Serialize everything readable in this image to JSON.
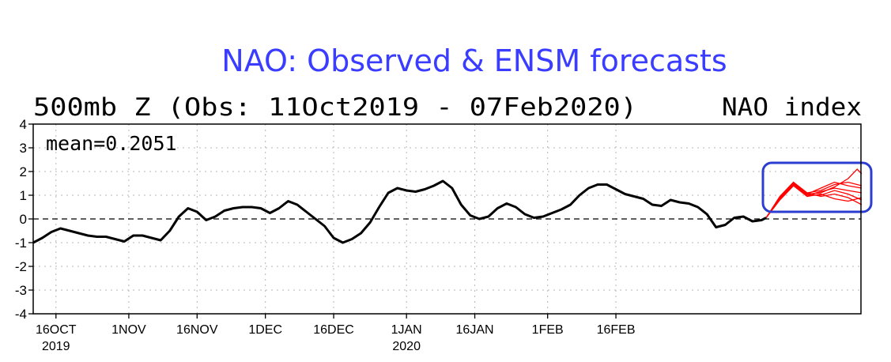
{
  "chart_data": {
    "type": "line",
    "title": "NAO: Observed & ENSM forecasts",
    "subtitle_left": "500mb Z (Obs: 11Oct2019 - 07Feb2020)",
    "subtitle_right": "NAO index",
    "annotation": "mean=0.2051",
    "ylim": [
      -4,
      4
    ],
    "yticks": [
      "4",
      "3",
      "2",
      "1",
      "0",
      "-1",
      "-2",
      "-3",
      "-4"
    ],
    "ytick_values": [
      4,
      3,
      2,
      1,
      0,
      -1,
      -2,
      -3,
      -4
    ],
    "xlim": [
      "2019-10-11",
      "2020-02-21"
    ],
    "xticks": [
      {
        "date": "2019-10-16",
        "label": "16OCT",
        "year": "2019"
      },
      {
        "date": "2019-11-01",
        "label": "1NOV",
        "year": ""
      },
      {
        "date": "2019-11-16",
        "label": "16NOV",
        "year": ""
      },
      {
        "date": "2019-12-01",
        "label": "1DEC",
        "year": ""
      },
      {
        "date": "2019-12-16",
        "label": "16DEC",
        "year": ""
      },
      {
        "date": "2020-01-01",
        "label": "1JAN",
        "year": "2020"
      },
      {
        "date": "2020-01-16",
        "label": "16JAN",
        "year": ""
      },
      {
        "date": "2020-02-01",
        "label": "1FEB",
        "year": ""
      },
      {
        "date": "2020-02-16",
        "label": "16FEB",
        "year": ""
      }
    ],
    "zero_line": "dashed",
    "grid": true,
    "observed": {
      "color": "#000000",
      "points": [
        [
          "2019-10-11",
          -1.0
        ],
        [
          "2019-10-13",
          -0.8
        ],
        [
          "2019-10-15",
          -0.55
        ],
        [
          "2019-10-17",
          -0.4
        ],
        [
          "2019-10-19",
          -0.5
        ],
        [
          "2019-10-21",
          -0.6
        ],
        [
          "2019-10-23",
          -0.7
        ],
        [
          "2019-10-25",
          -0.75
        ],
        [
          "2019-10-27",
          -0.75
        ],
        [
          "2019-10-29",
          -0.85
        ],
        [
          "2019-10-31",
          -0.95
        ],
        [
          "2019-11-02",
          -0.7
        ],
        [
          "2019-11-04",
          -0.7
        ],
        [
          "2019-11-06",
          -0.8
        ],
        [
          "2019-11-08",
          -0.9
        ],
        [
          "2019-11-10",
          -0.5
        ],
        [
          "2019-11-12",
          0.1
        ],
        [
          "2019-11-14",
          0.45
        ],
        [
          "2019-11-16",
          0.3
        ],
        [
          "2019-11-18",
          -0.05
        ],
        [
          "2019-11-20",
          0.1
        ],
        [
          "2019-11-22",
          0.35
        ],
        [
          "2019-11-24",
          0.45
        ],
        [
          "2019-11-26",
          0.5
        ],
        [
          "2019-11-28",
          0.5
        ],
        [
          "2019-11-30",
          0.45
        ],
        [
          "2019-12-02",
          0.25
        ],
        [
          "2019-12-04",
          0.45
        ],
        [
          "2019-12-06",
          0.75
        ],
        [
          "2019-12-08",
          0.6
        ],
        [
          "2019-12-10",
          0.3
        ],
        [
          "2019-12-12",
          0.0
        ],
        [
          "2019-12-14",
          -0.3
        ],
        [
          "2019-12-16",
          -0.8
        ],
        [
          "2019-12-18",
          -1.0
        ],
        [
          "2019-12-20",
          -0.85
        ],
        [
          "2019-12-22",
          -0.6
        ],
        [
          "2019-12-24",
          -0.15
        ],
        [
          "2019-12-26",
          0.5
        ],
        [
          "2019-12-28",
          1.1
        ],
        [
          "2019-12-30",
          1.3
        ],
        [
          "2020-01-01",
          1.2
        ],
        [
          "2020-01-03",
          1.15
        ],
        [
          "2020-01-05",
          1.25
        ],
        [
          "2020-01-07",
          1.4
        ],
        [
          "2020-01-09",
          1.6
        ],
        [
          "2020-01-11",
          1.3
        ],
        [
          "2020-01-13",
          0.6
        ],
        [
          "2020-01-15",
          0.15
        ],
        [
          "2020-01-17",
          0.0
        ],
        [
          "2020-01-19",
          0.1
        ],
        [
          "2020-01-21",
          0.45
        ],
        [
          "2020-01-23",
          0.65
        ],
        [
          "2020-01-25",
          0.5
        ],
        [
          "2020-01-27",
          0.2
        ],
        [
          "2020-01-29",
          0.05
        ],
        [
          "2020-01-31",
          0.1
        ],
        [
          "2020-02-02",
          0.25
        ],
        [
          "2020-02-04",
          0.4
        ],
        [
          "2020-02-06",
          0.6
        ],
        [
          "2020-02-08",
          1.0
        ],
        [
          "2020-02-10",
          1.3
        ],
        [
          "2020-02-12",
          1.45
        ],
        [
          "2020-02-14",
          1.45
        ],
        [
          "2020-02-16",
          1.25
        ],
        [
          "2020-02-18",
          1.05
        ],
        [
          "2020-02-20",
          0.95
        ],
        [
          "2020-02-22",
          0.85
        ],
        [
          "2020-02-24",
          0.6
        ],
        [
          "2020-02-26",
          0.55
        ],
        [
          "2020-02-28",
          0.8
        ],
        [
          "2020-03-01",
          0.7
        ],
        [
          "2020-03-03",
          0.65
        ],
        [
          "2020-03-05",
          0.5
        ],
        [
          "2020-03-07",
          0.2
        ],
        [
          "2020-03-09",
          -0.35
        ],
        [
          "2020-03-11",
          -0.25
        ],
        [
          "2020-03-13",
          0.05
        ],
        [
          "2020-03-15",
          0.1
        ],
        [
          "2020-03-17",
          -0.1
        ],
        [
          "2020-03-19",
          -0.05
        ],
        [
          "2020-03-20",
          0.05
        ]
      ]
    },
    "forecast": {
      "color": "#ff0000",
      "members": [
        [
          [
            "2020-03-20",
            0.05
          ],
          [
            "2020-03-23",
            0.9
          ],
          [
            "2020-03-26",
            1.5
          ],
          [
            "2020-03-29",
            1.05
          ],
          [
            "2020-04-01",
            1.1
          ],
          [
            "2020-04-04",
            1.35
          ],
          [
            "2020-04-07",
            1.7
          ],
          [
            "2020-04-09",
            2.1
          ],
          [
            "2020-04-10",
            1.9
          ]
        ],
        [
          [
            "2020-03-20",
            0.05
          ],
          [
            "2020-03-23",
            0.85
          ],
          [
            "2020-03-26",
            1.45
          ],
          [
            "2020-03-29",
            1.0
          ],
          [
            "2020-04-01",
            1.15
          ],
          [
            "2020-04-04",
            1.3
          ],
          [
            "2020-04-07",
            1.2
          ],
          [
            "2020-04-10",
            1.1
          ]
        ],
        [
          [
            "2020-03-20",
            0.05
          ],
          [
            "2020-03-23",
            0.95
          ],
          [
            "2020-03-26",
            1.55
          ],
          [
            "2020-03-29",
            1.1
          ],
          [
            "2020-04-01",
            0.95
          ],
          [
            "2020-04-04",
            1.05
          ],
          [
            "2020-04-07",
            0.9
          ],
          [
            "2020-04-10",
            0.6
          ]
        ],
        [
          [
            "2020-03-20",
            0.05
          ],
          [
            "2020-03-23",
            0.9
          ],
          [
            "2020-03-26",
            1.5
          ],
          [
            "2020-03-29",
            1.05
          ],
          [
            "2020-04-01",
            1.3
          ],
          [
            "2020-04-04",
            1.55
          ],
          [
            "2020-04-07",
            1.4
          ],
          [
            "2020-04-10",
            1.3
          ]
        ],
        [
          [
            "2020-03-20",
            0.05
          ],
          [
            "2020-03-23",
            0.8
          ],
          [
            "2020-03-26",
            1.4
          ],
          [
            "2020-03-29",
            0.95
          ],
          [
            "2020-04-01",
            1.05
          ],
          [
            "2020-04-04",
            0.85
          ],
          [
            "2020-04-07",
            0.75
          ],
          [
            "2020-04-10",
            0.9
          ]
        ],
        [
          [
            "2020-03-20",
            0.05
          ],
          [
            "2020-03-23",
            0.9
          ],
          [
            "2020-03-26",
            1.5
          ],
          [
            "2020-03-29",
            1.1
          ],
          [
            "2020-04-01",
            1.2
          ],
          [
            "2020-04-04",
            1.45
          ],
          [
            "2020-04-07",
            1.55
          ],
          [
            "2020-04-10",
            1.4
          ]
        ],
        [
          [
            "2020-03-20",
            0.05
          ],
          [
            "2020-03-23",
            0.85
          ],
          [
            "2020-03-26",
            1.45
          ],
          [
            "2020-03-29",
            1.0
          ],
          [
            "2020-04-01",
            1.0
          ],
          [
            "2020-04-04",
            1.2
          ],
          [
            "2020-04-07",
            1.05
          ],
          [
            "2020-04-10",
            0.8
          ]
        ]
      ]
    },
    "highlight_box_color": "#2c3ecf"
  }
}
